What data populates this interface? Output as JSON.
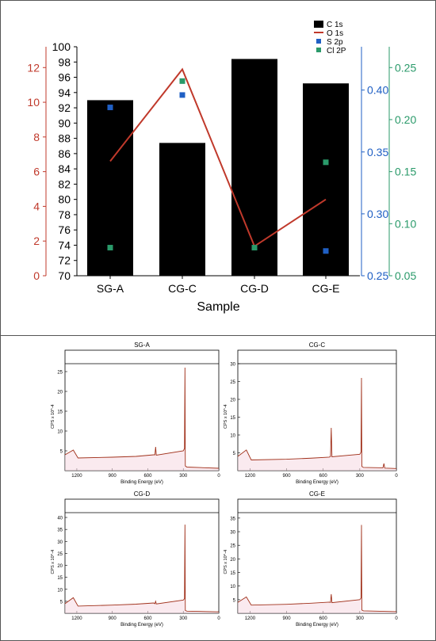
{
  "colors": {
    "c1s": "#000000",
    "o1s": "#c0392b",
    "s2p": "#1f5fc4",
    "cl2p": "#2a9a6a",
    "survey_line": "#a0301a",
    "survey_fill": "#f6d8e2"
  },
  "chart_data": [
    {
      "type": "bar",
      "title": "",
      "xlabel": "Sample",
      "categories": [
        "SG-A",
        "CG-C",
        "CG-D",
        "CG-E"
      ],
      "legend": {
        "placement": "top-right",
        "entries": [
          "C 1s",
          "O 1s",
          "S 2p",
          "Cl 2P"
        ]
      },
      "axes": {
        "c1s": {
          "ticks": [
            "70",
            "72",
            "74",
            "76",
            "78",
            "80",
            "82",
            "84",
            "86",
            "88",
            "90",
            "92",
            "94",
            "96",
            "98",
            "100"
          ],
          "ylim": [
            70,
            100
          ]
        },
        "o1s": {
          "ticks": [
            "0",
            "2",
            "4",
            "6",
            "8",
            "10",
            "12"
          ],
          "ylim": [
            0,
            13.2
          ]
        },
        "s2p": {
          "ticks": [
            "0.25",
            "0.30",
            "0.35",
            "0.40"
          ],
          "ylim": [
            0.25,
            0.435
          ]
        },
        "cl2p": {
          "ticks": [
            "0.05",
            "0.10",
            "0.15",
            "0.20",
            "0.25"
          ],
          "ylim": [
            0.05,
            0.27
          ]
        }
      },
      "series": [
        {
          "name": "C 1s",
          "kind": "bar",
          "axis": "c1s",
          "values": [
            93.0,
            87.4,
            98.4,
            95.2
          ]
        },
        {
          "name": "O 1s",
          "kind": "line",
          "axis": "o1s",
          "values": [
            6.6,
            11.9,
            1.7,
            4.4
          ]
        },
        {
          "name": "S 2p",
          "kind": "scatter",
          "axis": "s2p",
          "values": [
            0.386,
            null,
            null,
            0.27
          ],
          "extra_point": {
            "category_index": 1,
            "value": 0.396
          }
        },
        {
          "name": "Cl 2P",
          "kind": "scatter",
          "axis": "cl2p",
          "values": [
            0.077,
            0.237,
            0.077,
            0.159
          ]
        }
      ]
    },
    {
      "type": "line",
      "panels": [
        {
          "title": "SG-A",
          "ylabel": "CPS x 10^-4",
          "xlabel": "Binding Energy (eV)",
          "xticks": [
            "1200",
            "900",
            "600",
            "300",
            "0"
          ],
          "yticks": [
            "5",
            "10",
            "15",
            "20",
            "25"
          ],
          "ymax": 27
        },
        {
          "title": "CG-C",
          "ylabel": "CPS x 10^-4",
          "xlabel": "Binding Energy (eV)",
          "xticks": [
            "1200",
            "900",
            "600",
            "300",
            "0"
          ],
          "yticks": [
            "5",
            "10",
            "15",
            "20",
            "25",
            "30"
          ],
          "ymax": 30
        },
        {
          "title": "CG-D",
          "ylabel": "CPS x 10^-4",
          "xlabel": "Binding Energy (eV)",
          "xticks": [
            "1200",
            "900",
            "600",
            "300",
            "0"
          ],
          "yticks": [
            "5",
            "10",
            "15",
            "20",
            "25",
            "30",
            "35",
            "40"
          ],
          "ymax": 42
        },
        {
          "title": "CG-E",
          "ylabel": "CPS x 10^-4",
          "xlabel": "Binding Energy (eV)",
          "xticks": [
            "1200",
            "900",
            "600",
            "300",
            "0"
          ],
          "yticks": [
            "5",
            "10",
            "15",
            "20",
            "25",
            "30",
            "35"
          ],
          "ymax": 37
        }
      ]
    }
  ]
}
